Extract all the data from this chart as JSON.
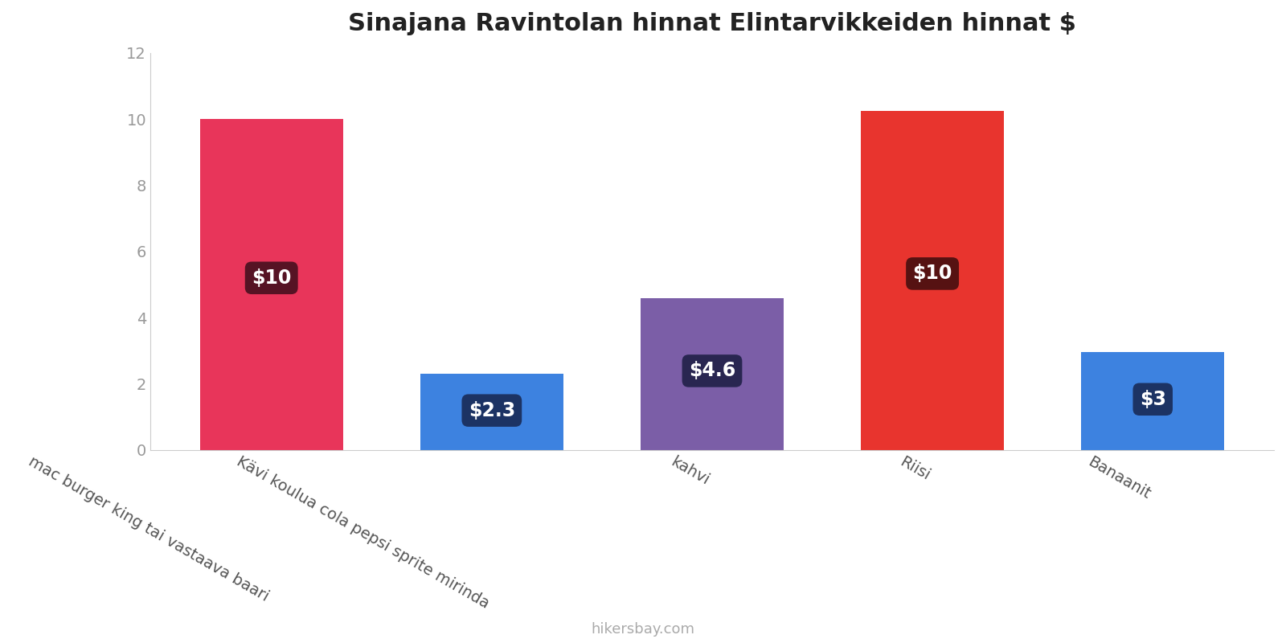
{
  "title": "Sinajana Ravintolan hinnat Elintarvikkeiden hinnat $",
  "categories": [
    "mac burger king tai vastaava baari",
    "Kävi koulua cola pepsi sprite mirinda",
    "kahvi",
    "Riisi",
    "Banaanit"
  ],
  "values": [
    10.0,
    2.3,
    4.6,
    10.25,
    2.95
  ],
  "bar_colors": [
    "#e8355a",
    "#3d82e0",
    "#7b5ea7",
    "#e8342e",
    "#3d82e0"
  ],
  "labels": [
    "$10",
    "$2.3",
    "$4.6",
    "$10",
    "$3"
  ],
  "label_bg_colors": [
    "#4a1020",
    "#1a2d5a",
    "#22224a",
    "#4a1010",
    "#1a2d5a"
  ],
  "ylim": [
    0,
    12
  ],
  "yticks": [
    0,
    2,
    4,
    6,
    8,
    10,
    12
  ],
  "footer": "hikersbay.com",
  "bg_color": "#ffffff",
  "title_fontsize": 22,
  "label_fontsize": 17,
  "tick_fontsize": 14,
  "footer_fontsize": 13,
  "bar_width": 0.65
}
